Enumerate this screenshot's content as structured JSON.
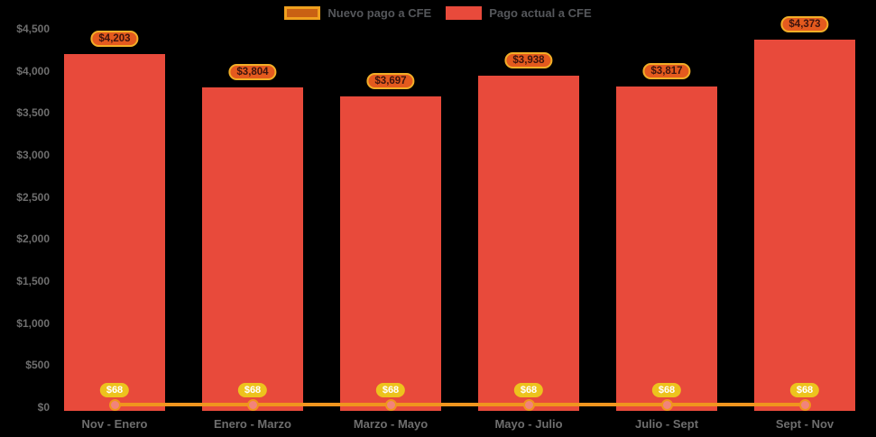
{
  "chart_data": {
    "type": "bar",
    "title": "",
    "categories": [
      "Nov - Enero",
      "Enero - Marzo",
      "Marzo - Mayo",
      "Mayo - Julio",
      "Julio - Sept",
      "Sept - Nov"
    ],
    "series": [
      {
        "name": "Nuevo pago a CFE",
        "type": "line",
        "color": "#f0951e",
        "marker_color": "#f2837b",
        "values": [
          68,
          68,
          68,
          68,
          68,
          68
        ],
        "labels": [
          "$68",
          "$68",
          "$68",
          "$68",
          "$68",
          "$68"
        ],
        "legend_swatch": {
          "fill": "#c96113",
          "border": "#f0a01e"
        }
      },
      {
        "name": "Pago actual a CFE",
        "type": "bar",
        "color": "#e84a3b",
        "values": [
          4203,
          3804,
          3697,
          3938,
          3817,
          4373
        ],
        "labels": [
          "$4,203",
          "$3,804",
          "$3,697",
          "$3,938",
          "$3,817",
          "$4,373"
        ],
        "legend_swatch": {
          "fill": "#e84a3b",
          "border": "#e84a3b"
        }
      }
    ],
    "yaxis": {
      "ticks": [
        0,
        500,
        1000,
        1500,
        2000,
        2500,
        3000,
        3500,
        4000,
        4500
      ],
      "tick_labels": [
        "$0",
        "$500",
        "$1,000",
        "$1,500",
        "$2,000",
        "$2,500",
        "$3,000",
        "$3,500",
        "$4,000",
        "$4,500"
      ],
      "ylim": [
        0,
        4500
      ]
    },
    "grid": false,
    "legend_position": "top-center",
    "background": "#000000",
    "axis_text_color": "#6e6e6e"
  }
}
